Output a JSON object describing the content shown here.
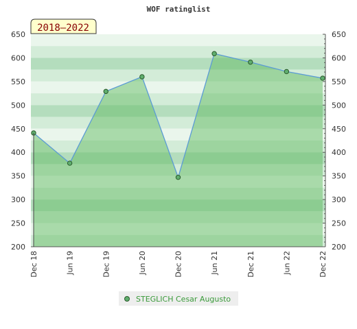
{
  "chart_data": {
    "type": "area",
    "title": "WOF ratinglist",
    "period_badge": "2018–2022",
    "x": [
      "Dec 18",
      "Jun 19",
      "Dec 19",
      "Jun 20",
      "Dec 20",
      "Jun 21",
      "Dec 21",
      "Jun 22",
      "Dec 22"
    ],
    "series": [
      {
        "name": "STEGLICH Cesar Augusto",
        "values": [
          441,
          377,
          529,
          560,
          347,
          609,
          591,
          571,
          557
        ]
      }
    ],
    "ylim": [
      200,
      650
    ],
    "yticks": [
      200,
      250,
      300,
      350,
      400,
      450,
      500,
      550,
      600,
      650
    ],
    "y_axis_both_sides": true,
    "grid": "horizontal bands",
    "legend_position": "bottom-center",
    "colors": {
      "line": "#5b9bd5",
      "area_fill": "#5cb85c",
      "marker_fill": "#5fae6e",
      "marker_stroke": "#2a5a2a",
      "legend_text": "#3a9a3a",
      "badge_bg": "#ffffcc",
      "badge_text": "#880000",
      "band_light": "#eaf6ec",
      "band_mid": "#d3ecd8",
      "band_dark": "#b4ddbd"
    }
  }
}
